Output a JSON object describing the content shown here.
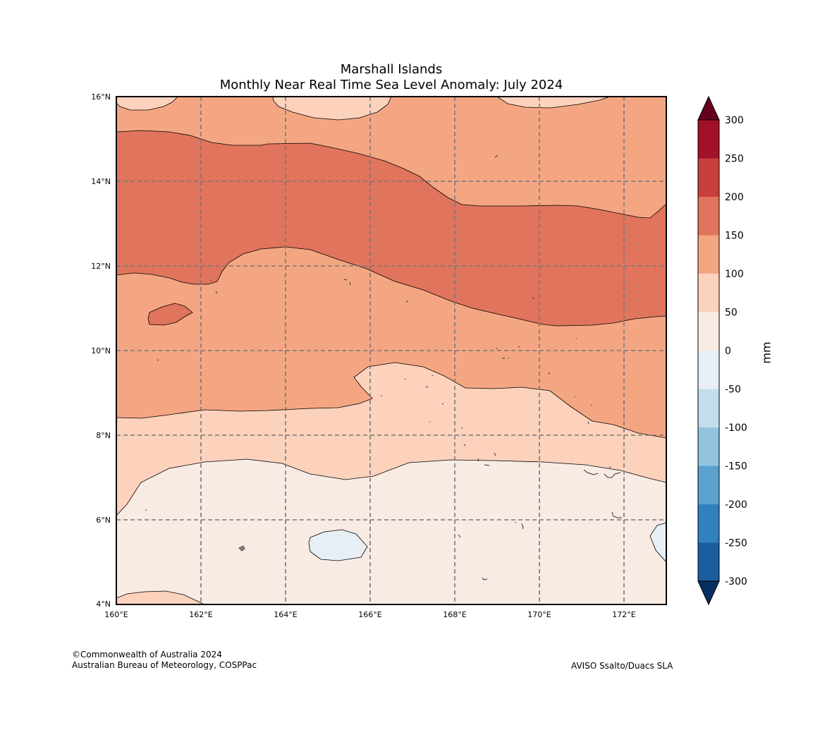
{
  "title": {
    "line1": "Marshall Islands",
    "line2": "Monthly Near Real Time Sea Level Anomaly: July 2024"
  },
  "map": {
    "x_ticks": [
      "160°E",
      "162°E",
      "164°E",
      "166°E",
      "168°E",
      "170°E",
      "172°E"
    ],
    "y_ticks": [
      "16°N",
      "14°N",
      "12°N",
      "10°N",
      "8°N",
      "6°N",
      "4°N"
    ],
    "lon_range": [
      160,
      173
    ],
    "lat_range": [
      4,
      16
    ],
    "gridlines": "dashed"
  },
  "colorbar": {
    "label": "mm",
    "ticks": [
      "300",
      "250",
      "200",
      "150",
      "100",
      "50",
      "0",
      "-50",
      "-100",
      "-150",
      "-200",
      "-250",
      "-300"
    ],
    "colors": [
      "#a11228",
      "#c8403d",
      "#e0745c",
      "#f4a683",
      "#fcd2bd",
      "#f8ebe3",
      "#e7eff4",
      "#c4dded",
      "#93c4de",
      "#5ba1ce",
      "#3181bd",
      "#1b5c9c"
    ],
    "over_color": "#67001f",
    "under_color": "#053061"
  },
  "credits": {
    "line1": "©Commonwealth of Australia 2024",
    "line2": "Australian Bureau of Meteorology, COSPPac",
    "source": "AVISO Ssalto/Duacs SLA"
  }
}
